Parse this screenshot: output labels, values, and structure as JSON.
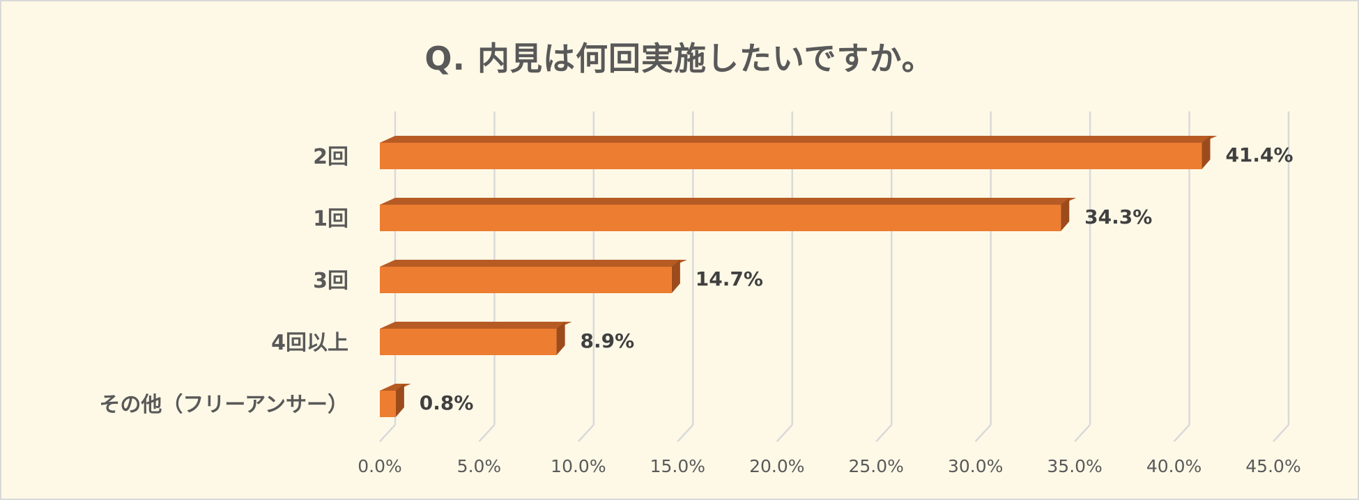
{
  "chart_data": {
    "type": "bar",
    "orientation": "horizontal",
    "title": "Q. 内見は何回実施したいですか。",
    "categories": [
      "2回",
      "1回",
      "3回",
      "4回以上",
      "その他（フリーアンサー）"
    ],
    "values": [
      41.4,
      34.3,
      14.7,
      8.9,
      0.8
    ],
    "value_labels": [
      "41.4%",
      "34.3%",
      "14.7%",
      "8.9%",
      "0.8%"
    ],
    "xlim": [
      0,
      45
    ],
    "x_ticks": [
      0,
      5,
      10,
      15,
      20,
      25,
      30,
      35,
      40,
      45
    ],
    "x_tick_labels": [
      "0.0%",
      "5.0%",
      "10.0%",
      "15.0%",
      "20.0%",
      "25.0%",
      "30.0%",
      "35.0%",
      "40.0%",
      "45.0%"
    ],
    "grid": "vertical",
    "legend": "none",
    "colors": {
      "bar_front": "#ed7d31",
      "bar_top": "#b65b24",
      "bar_side": "#9c4c1c",
      "grid": "#d9d9d9",
      "background": "#fef9e7"
    }
  }
}
